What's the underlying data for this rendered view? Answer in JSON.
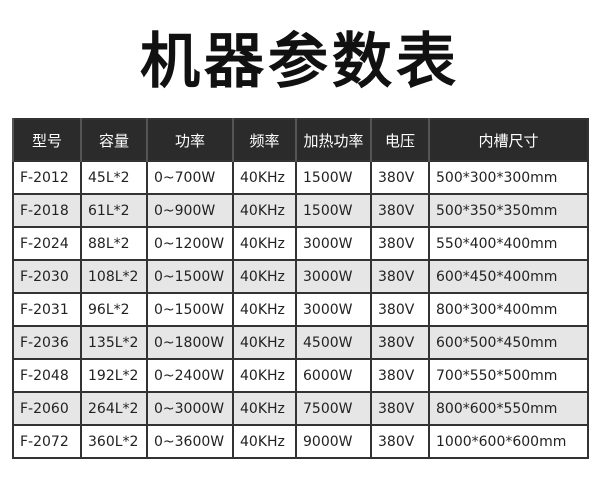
{
  "header": {
    "title": "机器参数表"
  },
  "table": {
    "header": [
      "型号",
      "容量",
      "功率",
      "频率",
      "加热功率",
      "电压",
      "内槽尺寸"
    ],
    "rows": [
      [
        "F-2012",
        "45L*2",
        "0~700W",
        "40KHz",
        "1500W",
        "380V",
        "500*300*300mm"
      ],
      [
        "F-2018",
        "61L*2",
        "0~900W",
        "40KHz",
        "1500W",
        "380V",
        "500*350*350mm"
      ],
      [
        "F-2024",
        "88L*2",
        "0~1200W",
        "40KHz",
        "3000W",
        "380V",
        "550*400*400mm"
      ],
      [
        "F-2030",
        "108L*2",
        "0~1500W",
        "40KHz",
        "3000W",
        "380V",
        "600*450*400mm"
      ],
      [
        "F-2031",
        "96L*2",
        "0~1500W",
        "40KHz",
        "3000W",
        "380V",
        "800*300*400mm"
      ],
      [
        "F-2036",
        "135L*2",
        "0~1800W",
        "40KHz",
        "4500W",
        "380V",
        "600*500*450mm"
      ],
      [
        "F-2048",
        "192L*2",
        "0~2400W",
        "40KHz",
        "6000W",
        "380V",
        "700*550*500mm"
      ],
      [
        "F-2060",
        "264L*2",
        "0~3000W",
        "40KHz",
        "7500W",
        "380V",
        "800*600*550mm"
      ],
      [
        "F-2072",
        "360L*2",
        "0~3600W",
        "40KHz",
        "9000W",
        "380V",
        "1000*600*600mm"
      ]
    ]
  }
}
